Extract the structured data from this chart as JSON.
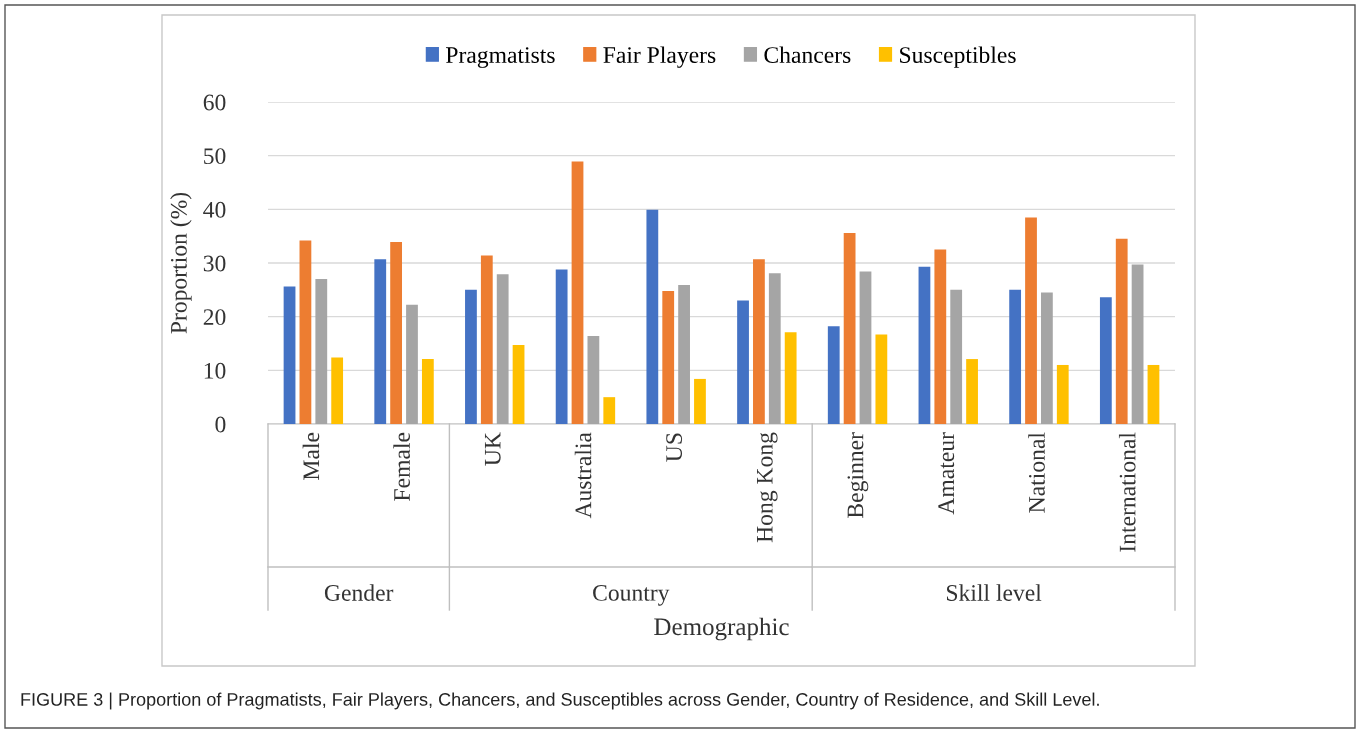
{
  "chart_data": {
    "type": "bar",
    "xlabel": "Demographic",
    "ylabel": "Proportion (%)",
    "categories": [
      "Male",
      "Female",
      "UK",
      "Australia",
      "US",
      "Hong Kong",
      "Beginner",
      "Amateur",
      "National",
      "International"
    ],
    "series": [
      {
        "name": "Pragmatists",
        "color": "#4472c4",
        "values": [
          25.6,
          30.7,
          25.0,
          28.8,
          39.9,
          23.0,
          18.2,
          29.3,
          25.0,
          23.6
        ]
      },
      {
        "name": "Fair Players",
        "color": "#ed7d31",
        "values": [
          34.2,
          33.9,
          31.4,
          48.9,
          24.8,
          30.7,
          35.6,
          32.5,
          38.5,
          34.5
        ]
      },
      {
        "name": "Chancers",
        "color": "#a5a5a5",
        "values": [
          27.0,
          22.2,
          27.9,
          16.4,
          25.9,
          28.1,
          28.4,
          25.0,
          24.5,
          29.7
        ]
      },
      {
        "name": "Susceptibles",
        "color": "#ffc000",
        "values": [
          12.4,
          12.1,
          14.7,
          5.0,
          8.4,
          17.1,
          16.7,
          12.1,
          11.0,
          11.0
        ]
      }
    ],
    "ylim": [
      0,
      60
    ],
    "yticks": [
      0,
      10,
      20,
      30,
      40,
      50,
      60
    ],
    "grid": "y",
    "legend": "top",
    "annotations": [
      "Gender",
      "Country",
      "Skill level",
      "FIGURE 3 | Proportion of Pragmatists, Fair Players, Chancers, and Susceptibles across Gender, Country of Residence, and Skill Level."
    ]
  }
}
